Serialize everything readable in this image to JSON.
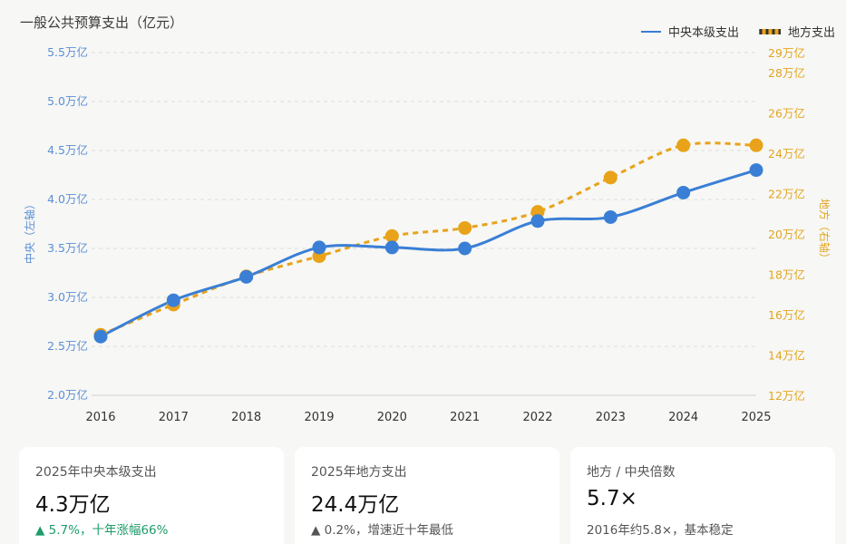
{
  "header": {
    "title": "一般公共预算支出（亿元）",
    "legend": [
      {
        "label": "中央本级支出",
        "color": "#3a7fd5",
        "style": "solid"
      },
      {
        "label": "地方支出",
        "color": "#e8a31a",
        "style": "dashed"
      }
    ]
  },
  "chart_data": {
    "type": "line",
    "title": "一般公共预算支出（亿元）",
    "x": [
      "2016",
      "2017",
      "2018",
      "2019",
      "2020",
      "2021",
      "2022",
      "2023",
      "2024",
      "2025"
    ],
    "series": [
      {
        "name": "中央本级支出",
        "axis": "left",
        "unit": "万亿",
        "values": [
          2.6,
          2.97,
          3.21,
          3.51,
          3.51,
          3.5,
          3.78,
          3.82,
          4.07,
          4.3
        ],
        "color": "#3a7fd5",
        "style": "solid"
      },
      {
        "name": "地方支出",
        "axis": "right",
        "unit": "万亿",
        "values": [
          15.0,
          16.5,
          17.9,
          18.9,
          19.9,
          20.3,
          21.1,
          22.8,
          24.4,
          24.4
        ],
        "color": "#e8a31a",
        "style": "dashed"
      }
    ],
    "y_left": {
      "label": "中央（左轴）",
      "ylim": [
        2.0,
        5.5
      ],
      "ticks": [
        2.0,
        2.5,
        3.0,
        3.5,
        4.0,
        4.5,
        5.0,
        5.5
      ],
      "tick_labels": [
        "2.0万亿",
        "2.5万亿",
        "3.0万亿",
        "3.5万亿",
        "4.0万亿",
        "4.5万亿",
        "5.0万亿",
        "5.5万亿"
      ]
    },
    "y_right": {
      "label": "地方（右轴）",
      "ylim": [
        12,
        29
      ],
      "ticks": [
        12,
        14,
        16,
        18,
        20,
        22,
        24,
        26,
        28,
        29
      ],
      "tick_labels": [
        "12万亿",
        "14万亿",
        "16万亿",
        "18万亿",
        "20万亿",
        "22万亿",
        "24万亿",
        "26万亿",
        "28万亿",
        "29万亿"
      ]
    },
    "grid": true,
    "legend_position": "top-right"
  },
  "cards": [
    {
      "label": "2025年中央本级支出",
      "value": "4.3万亿",
      "note": "▲ 5.7%，十年涨幅66%",
      "note_color": "#1e9c6a"
    },
    {
      "label": "2025年地方支出",
      "value": "24.4万亿",
      "note": "▲ 0.2%，增速近十年最低",
      "note_color": "#555555"
    },
    {
      "label": "地方 / 中央倍数",
      "value": "5.7×",
      "note": "2016年约5.8×，基本稳定",
      "note_color": "#555555"
    }
  ]
}
